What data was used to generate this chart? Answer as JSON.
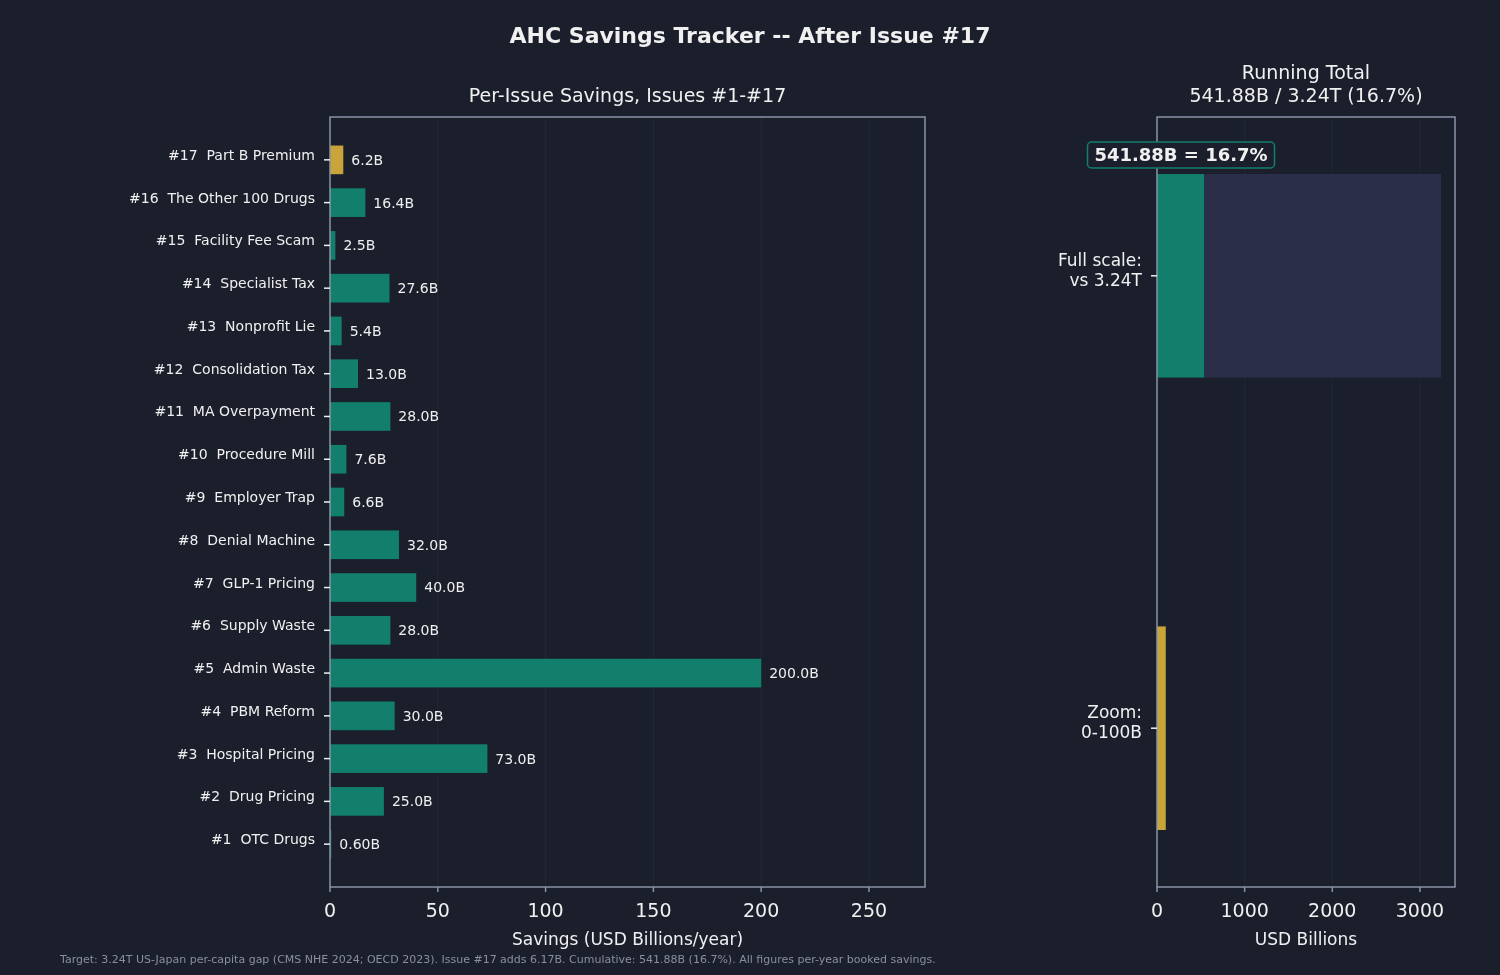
{
  "chart_data": [
    {
      "type": "bar",
      "orientation": "horizontal",
      "title": "AHC Savings Tracker -- After Issue #17",
      "subtitle": "Per-Issue Savings, Issues #1-#17",
      "xlabel": "Savings (USD Billions/year)",
      "categories": [
        "#17  Part B Premium",
        "#16  The Other 100 Drugs",
        "#15  Facility Fee Scam",
        "#14  Specialist Tax",
        "#13  Nonprofit Lie",
        "#12  Consolidation Tax",
        "#11  MA Overpayment",
        "#10  Procedure Mill",
        "#9  Employer Trap",
        "#8  Denial Machine",
        "#7  GLP-1 Pricing",
        "#6  Supply Waste",
        "#5  Admin Waste",
        "#4  PBM Reform",
        "#3  Hospital Pricing",
        "#2  Drug Pricing",
        "#1  OTC Drugs"
      ],
      "values": [
        6.17,
        16.4,
        2.5,
        27.6,
        5.4,
        13.0,
        28.0,
        7.6,
        6.6,
        32.0,
        40.0,
        28.0,
        200.0,
        30.0,
        73.0,
        25.0,
        0.6
      ],
      "value_labels": [
        "6.2B",
        "16.4B",
        "2.5B",
        "27.6B",
        "5.4B",
        "13.0B",
        "28.0B",
        "7.6B",
        "6.6B",
        "32.0B",
        "40.0B",
        "28.0B",
        "200.0B",
        "30.0B",
        "73.0B",
        "25.0B",
        "0.60B"
      ],
      "colors": [
        "#c9a43a",
        "#117f6c",
        "#117f6c",
        "#117f6c",
        "#117f6c",
        "#117f6c",
        "#117f6c",
        "#117f6c",
        "#117f6c",
        "#117f6c",
        "#117f6c",
        "#117f6c",
        "#117f6c",
        "#117f6c",
        "#117f6c",
        "#117f6c",
        "#117f6c"
      ],
      "xlim": [
        0,
        276
      ],
      "xticks": [
        0,
        50,
        100,
        150,
        200,
        250
      ],
      "grid": "x",
      "annotations": [
        "Target: 3.24T US-Japan per-capita gap (CMS NHE 2024; OECD 2023). Issue #17 adds 6.17B. Cumulative: 541.88B (16.7%). All figures per-year booked savings."
      ]
    },
    {
      "type": "bar",
      "orientation": "horizontal",
      "stacked": true,
      "title": "Running Total\n541.88B / 3.24T (16.7%)",
      "xlabel": "USD Billions",
      "categories": [
        "Full scale:\nvs 3.24T",
        "Zoom:\n0-100B"
      ],
      "series": [
        {
          "color": "#117f6c",
          "values": [
            540,
            null
          ]
        },
        {
          "color": "#2b2e48",
          "values": [
            2700,
            null
          ]
        },
        {
          "color": "#c9a43a",
          "values": [
            null,
            100
          ]
        }
      ],
      "xlim": [
        0,
        3400
      ],
      "xticks": [
        0,
        1000,
        2000,
        3000
      ],
      "grid": "x",
      "annotations": [
        "541.88B = 16.7%"
      ]
    }
  ]
}
